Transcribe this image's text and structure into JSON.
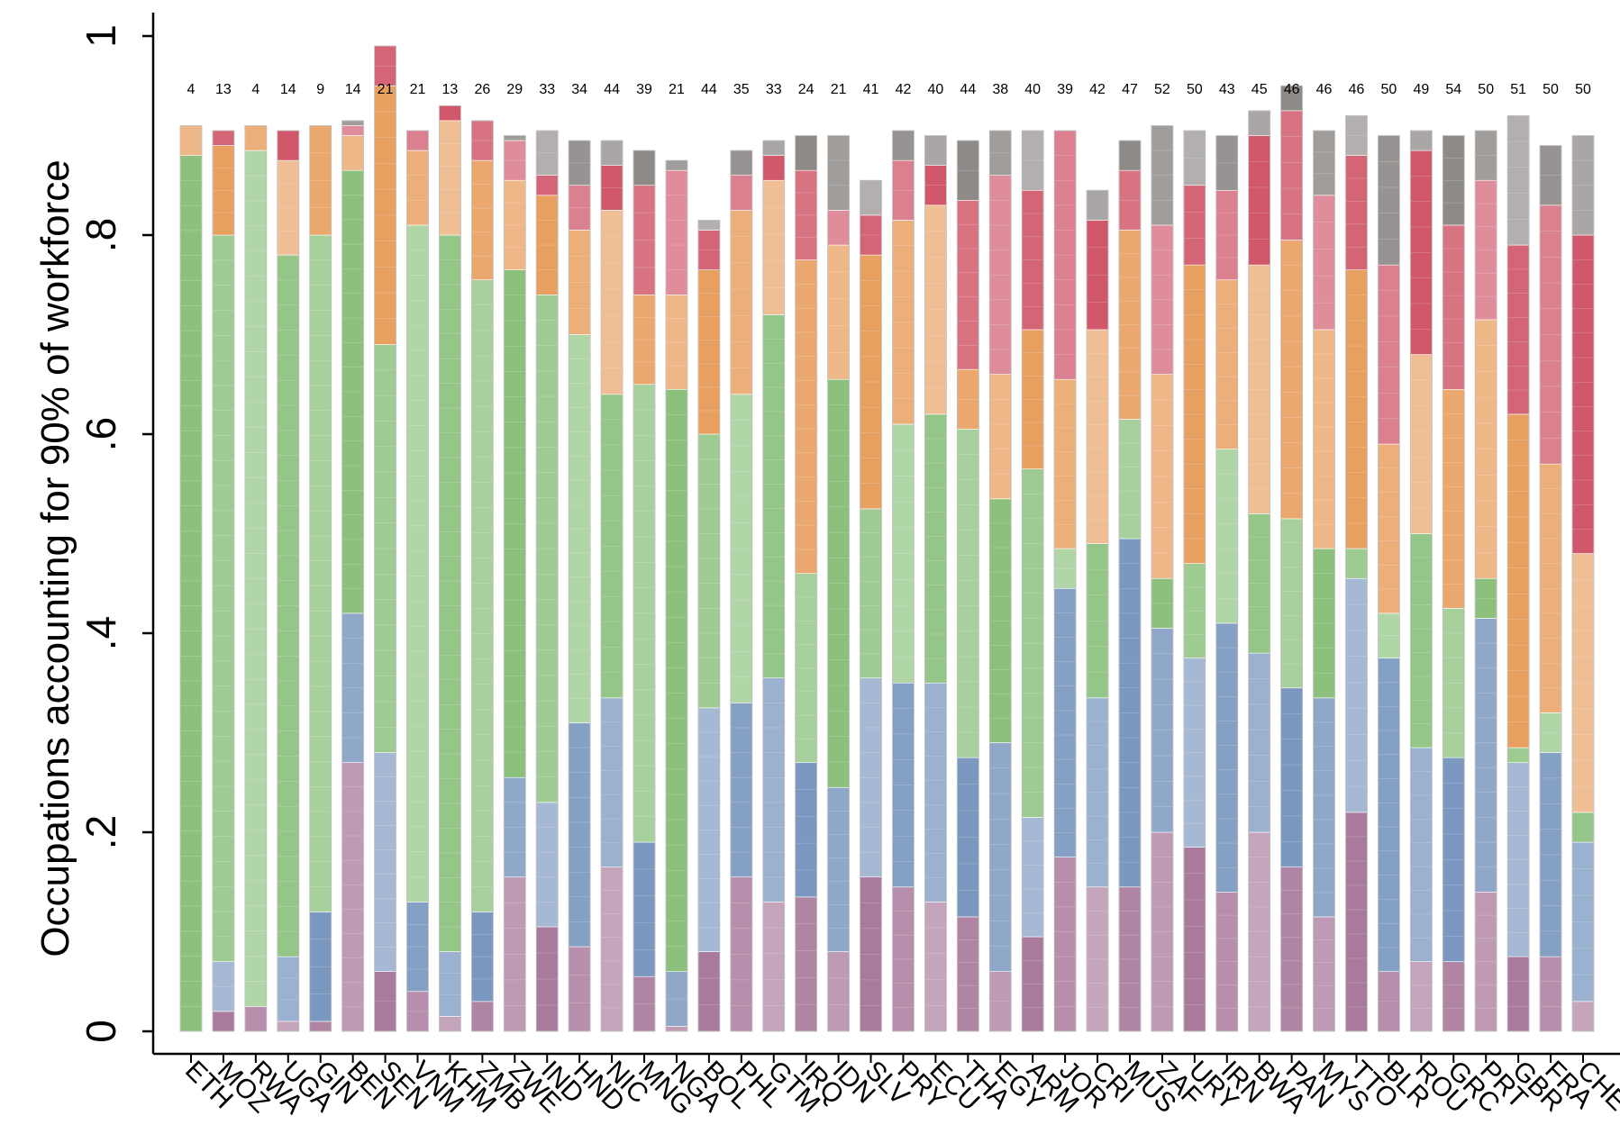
{
  "chart_data": {
    "type": "bar",
    "ylabel": "Occupations accounting for 90% of workforce",
    "ylim": [
      0,
      1
    ],
    "yticks": [
      {
        "value": 0,
        "label": "0"
      },
      {
        "value": 0.2,
        "label": ".2"
      },
      {
        "value": 0.4,
        "label": ".4"
      },
      {
        "value": 0.6,
        "label": ".6"
      },
      {
        "value": 0.8,
        "label": ".8"
      },
      {
        "value": 1,
        "label": "1"
      }
    ],
    "categories": [
      "ETH",
      "MOZ",
      "RWA",
      "UGA",
      "GIN",
      "BEN",
      "SEN",
      "VNM",
      "KHM",
      "ZMB",
      "ZWE",
      "IND",
      "HND",
      "NIC",
      "MNG",
      "NGA",
      "BOL",
      "PHL",
      "GTM",
      "IRQ",
      "IDN",
      "SLV",
      "PRY",
      "ECU",
      "THA",
      "EGY",
      "ARM",
      "JOR",
      "CRI",
      "MUS",
      "ZAF",
      "URY",
      "IRN",
      "BWA",
      "PAN",
      "MYS",
      "TTO",
      "BLR",
      "ROU",
      "GRC",
      "PRT",
      "GBR",
      "FRA",
      "CHE"
    ],
    "occupation_counts": [
      4,
      13,
      4,
      14,
      9,
      14,
      21,
      21,
      13,
      26,
      29,
      33,
      34,
      44,
      39,
      21,
      44,
      35,
      33,
      24,
      21,
      41,
      42,
      40,
      44,
      38,
      40,
      39,
      42,
      47,
      52,
      50,
      43,
      45,
      46,
      46,
      46,
      50,
      49,
      54,
      50,
      51,
      50,
      50
    ],
    "group_colors": {
      "purple": "#a97a9c",
      "blue": "#7a98c0",
      "green": "#8bc17d",
      "orange": "#e8a061",
      "red": "#d0586a",
      "gray": "#8e8a88"
    },
    "series": [
      {
        "group": "purple",
        "values": [
          0.0,
          0.02,
          0.025,
          0.01,
          0.01,
          0.27,
          0.06,
          0.04,
          0.015,
          0.03,
          0.155,
          0.105,
          0.085,
          0.165,
          0.055,
          0.005,
          0.08,
          0.155,
          0.13,
          0.135,
          0.08,
          0.155,
          0.145,
          0.13,
          0.115,
          0.06,
          0.095,
          0.175,
          0.145,
          0.145,
          0.2,
          0.185,
          0.14,
          0.2,
          0.165,
          0.115,
          0.22,
          0.06,
          0.07,
          0.07,
          0.14,
          0.075,
          0.075,
          0.03
        ]
      },
      {
        "group": "blue",
        "values": [
          0.0,
          0.05,
          0.0,
          0.065,
          0.11,
          0.15,
          0.22,
          0.09,
          0.065,
          0.09,
          0.1,
          0.125,
          0.225,
          0.17,
          0.135,
          0.055,
          0.245,
          0.175,
          0.225,
          0.135,
          0.165,
          0.2,
          0.205,
          0.22,
          0.16,
          0.23,
          0.12,
          0.27,
          0.19,
          0.35,
          0.205,
          0.19,
          0.27,
          0.18,
          0.18,
          0.22,
          0.235,
          0.315,
          0.215,
          0.205,
          0.275,
          0.195,
          0.205,
          0.16
        ]
      },
      {
        "group": "green",
        "values": [
          0.88,
          0.73,
          0.86,
          0.705,
          0.68,
          0.445,
          0.41,
          0.68,
          0.72,
          0.635,
          0.51,
          0.51,
          0.39,
          0.305,
          0.46,
          0.585,
          0.275,
          0.31,
          0.365,
          0.19,
          0.41,
          0.17,
          0.26,
          0.27,
          0.33,
          0.245,
          0.35,
          0.04,
          0.155,
          0.12,
          0.05,
          0.095,
          0.175,
          0.14,
          0.17,
          0.15,
          0.03,
          0.045,
          0.215,
          0.15,
          0.04,
          0.015,
          0.04,
          0.03
        ]
      },
      {
        "group": "orange",
        "values": [
          0.03,
          0.09,
          0.025,
          0.095,
          0.11,
          0.035,
          0.26,
          0.075,
          0.115,
          0.12,
          0.09,
          0.1,
          0.105,
          0.185,
          0.09,
          0.095,
          0.165,
          0.185,
          0.135,
          0.315,
          0.135,
          0.255,
          0.205,
          0.21,
          0.06,
          0.125,
          0.14,
          0.17,
          0.215,
          0.19,
          0.205,
          0.3,
          0.17,
          0.25,
          0.28,
          0.22,
          0.28,
          0.17,
          0.18,
          0.22,
          0.26,
          0.335,
          0.25,
          0.26
        ]
      },
      {
        "group": "red",
        "values": [
          0.0,
          0.015,
          0.0,
          0.03,
          0.0,
          0.01,
          0.04,
          0.02,
          0.015,
          0.04,
          0.04,
          0.02,
          0.045,
          0.045,
          0.11,
          0.125,
          0.04,
          0.035,
          0.025,
          0.09,
          0.035,
          0.04,
          0.06,
          0.04,
          0.17,
          0.2,
          0.14,
          0.25,
          0.11,
          0.06,
          0.15,
          0.08,
          0.09,
          0.13,
          0.13,
          0.135,
          0.115,
          0.18,
          0.205,
          0.165,
          0.14,
          0.17,
          0.26,
          0.32
        ]
      },
      {
        "group": "gray",
        "values": [
          0.0,
          0.0,
          0.0,
          0.0,
          0.0,
          0.005,
          0.0,
          0.0,
          0.0,
          0.0,
          0.005,
          0.045,
          0.045,
          0.025,
          0.035,
          0.01,
          0.01,
          0.025,
          0.015,
          0.035,
          0.075,
          0.035,
          0.03,
          0.03,
          0.06,
          0.045,
          0.06,
          0.0,
          0.03,
          0.03,
          0.1,
          0.055,
          0.055,
          0.025,
          0.025,
          0.065,
          0.04,
          0.13,
          0.02,
          0.09,
          0.05,
          0.13,
          0.06,
          0.1
        ]
      }
    ],
    "grid": false,
    "legend": "none"
  }
}
